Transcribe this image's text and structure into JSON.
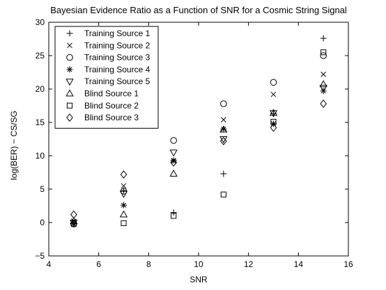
{
  "chart_data": {
    "type": "scatter",
    "title": "Bayesian Evidence Ratio as a Function of SNR for a Cosmic String Signal",
    "xlabel": "SNR",
    "ylabel": "log(BER) − CS/SG",
    "xlim": [
      4,
      16
    ],
    "ylim": [
      -5,
      30
    ],
    "xticks": [
      "4",
      "6",
      "8",
      "10",
      "12",
      "14",
      "16"
    ],
    "yticks": [
      "−5",
      "0",
      "5",
      "10",
      "15",
      "20",
      "25",
      "30"
    ],
    "grid": false,
    "legend_position": "top-left",
    "series": [
      {
        "name": "Training Source 1",
        "marker": "plus",
        "x": [
          5,
          7,
          9,
          11,
          13,
          15
        ],
        "y": [
          -0.2,
          4.8,
          1.5,
          7.3,
          16.3,
          27.6
        ]
      },
      {
        "name": "Training Source 2",
        "marker": "x",
        "x": [
          5,
          7,
          9,
          11,
          13,
          15
        ],
        "y": [
          0.2,
          5.5,
          9.2,
          15.4,
          19.2,
          22.2
        ]
      },
      {
        "name": "Training Source 3",
        "marker": "circle",
        "x": [
          5,
          7,
          9,
          11,
          13,
          15
        ],
        "y": [
          -0.2,
          4.7,
          12.3,
          17.8,
          21.0,
          25.0
        ]
      },
      {
        "name": "Training Source 4",
        "marker": "asterisk",
        "x": [
          5,
          7,
          9,
          11,
          13,
          15
        ],
        "y": [
          -0.2,
          2.6,
          9.3,
          14.0,
          14.8,
          19.7
        ]
      },
      {
        "name": "Training Source 5",
        "marker": "tridown",
        "x": [
          5,
          7,
          9,
          11,
          13,
          15
        ],
        "y": [
          0.0,
          4.3,
          10.5,
          12.5,
          16.4,
          20.2
        ]
      },
      {
        "name": "Blind Source 1",
        "marker": "triup",
        "x": [
          5,
          7,
          9,
          11,
          13,
          15
        ],
        "y": [
          0.2,
          1.2,
          7.3,
          13.9,
          16.4,
          20.7
        ]
      },
      {
        "name": "Blind Source 2",
        "marker": "square",
        "x": [
          5,
          7,
          9,
          11,
          13,
          15
        ],
        "y": [
          -0.2,
          -0.1,
          1.0,
          4.2,
          15.1,
          25.5
        ]
      },
      {
        "name": "Blind Source 3",
        "marker": "diamond",
        "x": [
          5,
          7,
          9,
          11,
          13,
          15
        ],
        "y": [
          1.2,
          7.2,
          9.0,
          12.2,
          14.2,
          17.8
        ]
      }
    ]
  }
}
